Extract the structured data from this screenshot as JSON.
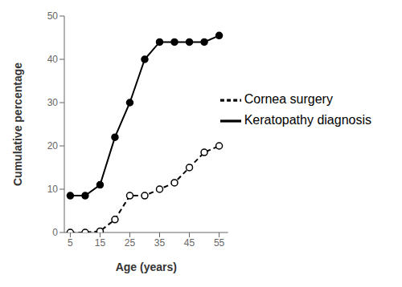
{
  "chart_data": {
    "type": "line",
    "x": [
      5,
      10,
      15,
      20,
      25,
      30,
      35,
      40,
      45,
      50,
      55
    ],
    "series": [
      {
        "name": "Keratopathy diagnosis",
        "color": "black",
        "values": [
          8.5,
          8.5,
          11,
          22,
          30,
          40,
          44,
          44,
          44,
          44,
          45.5
        ],
        "line_style": "solid",
        "marker": "circle"
      },
      {
        "name": "Cornea surgery",
        "color": "black",
        "values": [
          0,
          0,
          0.3,
          3,
          8.5,
          8.5,
          10,
          11.5,
          15,
          18.5,
          20
        ],
        "line_style": "dashed",
        "marker": "open_circle"
      }
    ],
    "xlabel": "Age (years)",
    "ylabel": "Cumulative percentage",
    "xlim": [
      3,
      58
    ],
    "ylim": [
      0,
      50
    ],
    "xticks": [
      5,
      15,
      25,
      35,
      45,
      55
    ],
    "yticks": [
      0,
      10,
      20,
      30,
      40,
      50
    ],
    "grid": false,
    "legend": "right"
  }
}
